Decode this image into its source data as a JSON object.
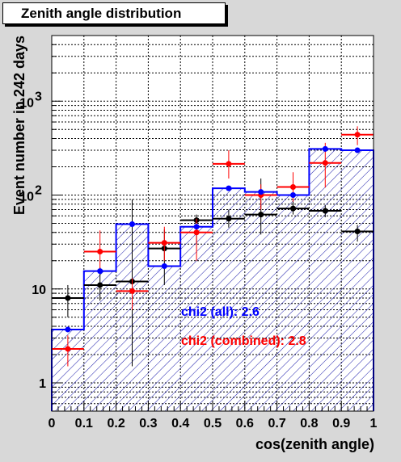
{
  "chart_data": {
    "type": "histogram",
    "title": "Zenith angle distribution",
    "xlabel": "cos(zenith angle)",
    "ylabel": "Event number in 242 days",
    "xlim": [
      0,
      1
    ],
    "ylim": [
      0.5,
      5000
    ],
    "y_scale": "log",
    "grid": true,
    "x_ticks": [
      "0",
      "0.1",
      "0.2",
      "0.3",
      "0.4",
      "0.5",
      "0.6",
      "0.7",
      "0.8",
      "0.9",
      "1"
    ],
    "y_ticks": [
      {
        "value": 1,
        "label": "1"
      },
      {
        "value": 10,
        "label": "10"
      },
      {
        "value": 100,
        "label": "10",
        "exp": "2"
      },
      {
        "value": 1000,
        "label": "10",
        "exp": "3"
      }
    ],
    "bin_edges": [
      0,
      0.1,
      0.2,
      0.3,
      0.4,
      0.5,
      0.6,
      0.7,
      0.8,
      0.9,
      1.0
    ],
    "series": [
      {
        "kind": "histogram",
        "color": "#0000ff",
        "values": [
          3.7,
          15.5,
          49,
          17.5,
          46,
          118,
          108,
          100,
          310,
          300
        ]
      },
      {
        "kind": "points",
        "color": "#0000ff",
        "x": [
          0.05,
          0.15,
          0.25,
          0.35,
          0.45,
          0.55,
          0.65,
          0.75,
          0.85,
          0.95
        ],
        "y": [
          3.7,
          15.5,
          49,
          17.5,
          46,
          118,
          108,
          100,
          310,
          300
        ]
      },
      {
        "kind": "points",
        "color": "#ff0000",
        "x": [
          0.05,
          0.15,
          0.25,
          0.35,
          0.45,
          0.55,
          0.65,
          0.75,
          0.85,
          0.95
        ],
        "y": [
          2.3,
          25,
          9.5,
          31,
          40,
          215,
          100,
          122,
          220,
          440
        ],
        "y_low": [
          1.5,
          16,
          6,
          20,
          20,
          150,
          70,
          85,
          120,
          340
        ],
        "y_high": [
          3.2,
          42,
          13,
          46,
          56,
          300,
          130,
          175,
          360,
          540
        ]
      },
      {
        "kind": "points",
        "color": "#000000",
        "x": [
          0.05,
          0.15,
          0.25,
          0.35,
          0.45,
          0.55,
          0.65,
          0.75,
          0.85,
          0.95
        ],
        "y": [
          8,
          11,
          12,
          27,
          54,
          56,
          62,
          72,
          68,
          41
        ],
        "y_low": [
          5,
          7.5,
          1.5,
          11,
          30,
          45,
          38,
          62,
          58,
          32
        ],
        "y_high": [
          11,
          17,
          90,
          43,
          62,
          70,
          150,
          86,
          78,
          48
        ]
      }
    ],
    "annotations": [
      {
        "text": "chi2 (all): 2.6",
        "color": "#0000ff"
      },
      {
        "text": "chi2 (combined): 2.8",
        "color": "#ff0000"
      }
    ]
  }
}
